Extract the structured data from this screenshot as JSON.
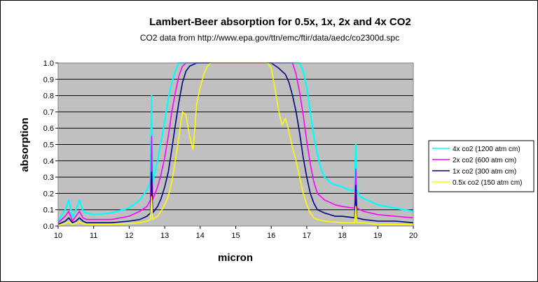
{
  "chart_data": {
    "type": "line",
    "title": "Lambert-Beer absorption for 0.5x, 1x, 2x and 4x CO2",
    "subtitle": "CO2 data from http://www.epa.gov/ttn/emc/ftir/data/aedc/co2300d.spc",
    "xlabel": "micron",
    "ylabel": "absorption",
    "xlim": [
      10,
      20
    ],
    "ylim": [
      0,
      1
    ],
    "xticks": [
      "10",
      "11",
      "12",
      "13",
      "14",
      "15",
      "16",
      "17",
      "18",
      "19",
      "20"
    ],
    "yticks": [
      "0.0",
      "0.1",
      "0.2",
      "0.3",
      "0.4",
      "0.5",
      "0.6",
      "0.7",
      "0.8",
      "0.9",
      "1.0"
    ],
    "grid": "horizontal",
    "plot_background": "#c0c0c0",
    "legend_position": "right",
    "series": [
      {
        "name": "4x co2 (1200 atm cm)",
        "color": "#00ffff",
        "points": [
          [
            10.0,
            0.03
          ],
          [
            10.2,
            0.1
          ],
          [
            10.3,
            0.16
          ],
          [
            10.4,
            0.05
          ],
          [
            10.5,
            0.1
          ],
          [
            10.6,
            0.16
          ],
          [
            10.7,
            0.09
          ],
          [
            10.8,
            0.08
          ],
          [
            11.0,
            0.07
          ],
          [
            11.5,
            0.08
          ],
          [
            12.0,
            0.11
          ],
          [
            12.3,
            0.16
          ],
          [
            12.5,
            0.22
          ],
          [
            12.6,
            0.27
          ],
          [
            12.63,
            0.8
          ],
          [
            12.66,
            0.27
          ],
          [
            12.8,
            0.4
          ],
          [
            12.9,
            0.52
          ],
          [
            13.0,
            0.64
          ],
          [
            13.1,
            0.78
          ],
          [
            13.2,
            0.88
          ],
          [
            13.3,
            0.95
          ],
          [
            13.4,
            1.0
          ],
          [
            14.0,
            1.0
          ],
          [
            16.0,
            1.0
          ],
          [
            16.8,
            1.0
          ],
          [
            16.9,
            0.95
          ],
          [
            17.0,
            0.85
          ],
          [
            17.1,
            0.7
          ],
          [
            17.2,
            0.55
          ],
          [
            17.3,
            0.44
          ],
          [
            17.4,
            0.35
          ],
          [
            17.5,
            0.3
          ],
          [
            17.7,
            0.26
          ],
          [
            18.0,
            0.24
          ],
          [
            18.2,
            0.22
          ],
          [
            18.35,
            0.22
          ],
          [
            18.38,
            0.5
          ],
          [
            18.41,
            0.22
          ],
          [
            18.5,
            0.18
          ],
          [
            19.0,
            0.13
          ],
          [
            19.5,
            0.11
          ],
          [
            20.0,
            0.09
          ]
        ]
      },
      {
        "name": "2x co2 (600 atm cm)",
        "color": "#ff00ff",
        "points": [
          [
            10.0,
            0.02
          ],
          [
            10.2,
            0.06
          ],
          [
            10.3,
            0.09
          ],
          [
            10.4,
            0.03
          ],
          [
            10.5,
            0.06
          ],
          [
            10.6,
            0.09
          ],
          [
            10.7,
            0.05
          ],
          [
            10.8,
            0.04
          ],
          [
            11.0,
            0.04
          ],
          [
            11.5,
            0.04
          ],
          [
            12.0,
            0.06
          ],
          [
            12.3,
            0.09
          ],
          [
            12.5,
            0.12
          ],
          [
            12.6,
            0.16
          ],
          [
            12.63,
            0.55
          ],
          [
            12.66,
            0.16
          ],
          [
            12.8,
            0.24
          ],
          [
            12.9,
            0.32
          ],
          [
            13.0,
            0.42
          ],
          [
            13.1,
            0.55
          ],
          [
            13.2,
            0.7
          ],
          [
            13.3,
            0.82
          ],
          [
            13.4,
            0.92
          ],
          [
            13.5,
            0.98
          ],
          [
            13.6,
            1.0
          ],
          [
            14.0,
            1.0
          ],
          [
            16.0,
            1.0
          ],
          [
            16.6,
            1.0
          ],
          [
            16.7,
            0.93
          ],
          [
            16.8,
            0.82
          ],
          [
            16.9,
            0.68
          ],
          [
            17.0,
            0.52
          ],
          [
            17.1,
            0.38
          ],
          [
            17.2,
            0.27
          ],
          [
            17.3,
            0.2
          ],
          [
            17.5,
            0.16
          ],
          [
            17.8,
            0.13
          ],
          [
            18.0,
            0.12
          ],
          [
            18.35,
            0.11
          ],
          [
            18.38,
            0.35
          ],
          [
            18.41,
            0.11
          ],
          [
            18.6,
            0.09
          ],
          [
            19.0,
            0.07
          ],
          [
            19.5,
            0.06
          ],
          [
            20.0,
            0.05
          ]
        ]
      },
      {
        "name": "1x co2 (300 atm cm)",
        "color": "#000080",
        "points": [
          [
            10.0,
            0.01
          ],
          [
            10.2,
            0.03
          ],
          [
            10.3,
            0.05
          ],
          [
            10.4,
            0.02
          ],
          [
            10.5,
            0.03
          ],
          [
            10.6,
            0.05
          ],
          [
            10.7,
            0.03
          ],
          [
            10.8,
            0.02
          ],
          [
            11.0,
            0.02
          ],
          [
            11.5,
            0.02
          ],
          [
            12.0,
            0.03
          ],
          [
            12.3,
            0.04
          ],
          [
            12.5,
            0.06
          ],
          [
            12.6,
            0.08
          ],
          [
            12.63,
            0.33
          ],
          [
            12.66,
            0.08
          ],
          [
            12.8,
            0.12
          ],
          [
            12.9,
            0.17
          ],
          [
            13.0,
            0.24
          ],
          [
            13.1,
            0.33
          ],
          [
            13.2,
            0.47
          ],
          [
            13.3,
            0.62
          ],
          [
            13.4,
            0.76
          ],
          [
            13.5,
            0.88
          ],
          [
            13.6,
            0.95
          ],
          [
            13.7,
            0.98
          ],
          [
            13.8,
            0.99
          ],
          [
            13.9,
            1.0
          ],
          [
            14.0,
            1.0
          ],
          [
            16.0,
            1.0
          ],
          [
            16.2,
            0.97
          ],
          [
            16.4,
            0.93
          ],
          [
            16.5,
            0.88
          ],
          [
            16.6,
            0.8
          ],
          [
            16.7,
            0.7
          ],
          [
            16.8,
            0.57
          ],
          [
            16.9,
            0.42
          ],
          [
            17.0,
            0.3
          ],
          [
            17.1,
            0.2
          ],
          [
            17.2,
            0.14
          ],
          [
            17.3,
            0.1
          ],
          [
            17.5,
            0.08
          ],
          [
            17.8,
            0.06
          ],
          [
            18.0,
            0.06
          ],
          [
            18.35,
            0.05
          ],
          [
            18.38,
            0.25
          ],
          [
            18.41,
            0.05
          ],
          [
            18.6,
            0.04
          ],
          [
            19.0,
            0.03
          ],
          [
            19.5,
            0.03
          ],
          [
            20.0,
            0.02
          ]
        ]
      },
      {
        "name": "0.5x co2 (150 atm cm)",
        "color": "#ffff00",
        "points": [
          [
            10.0,
            0.005
          ],
          [
            10.2,
            0.015
          ],
          [
            10.3,
            0.025
          ],
          [
            10.4,
            0.01
          ],
          [
            10.5,
            0.015
          ],
          [
            10.6,
            0.025
          ],
          [
            10.7,
            0.015
          ],
          [
            10.8,
            0.01
          ],
          [
            11.0,
            0.01
          ],
          [
            11.5,
            0.01
          ],
          [
            12.0,
            0.015
          ],
          [
            12.3,
            0.02
          ],
          [
            12.5,
            0.03
          ],
          [
            12.6,
            0.04
          ],
          [
            12.63,
            0.18
          ],
          [
            12.66,
            0.04
          ],
          [
            12.8,
            0.06
          ],
          [
            12.9,
            0.09
          ],
          [
            13.0,
            0.13
          ],
          [
            13.1,
            0.18
          ],
          [
            13.2,
            0.27
          ],
          [
            13.3,
            0.4
          ],
          [
            13.4,
            0.55
          ],
          [
            13.5,
            0.7
          ],
          [
            13.6,
            0.68
          ],
          [
            13.7,
            0.55
          ],
          [
            13.8,
            0.47
          ],
          [
            13.85,
            0.6
          ],
          [
            13.9,
            0.75
          ],
          [
            14.0,
            0.85
          ],
          [
            14.1,
            0.93
          ],
          [
            14.2,
            0.98
          ],
          [
            14.3,
            1.0
          ],
          [
            15.9,
            1.0
          ],
          [
            16.0,
            0.97
          ],
          [
            16.1,
            0.85
          ],
          [
            16.2,
            0.72
          ],
          [
            16.3,
            0.62
          ],
          [
            16.4,
            0.66
          ],
          [
            16.5,
            0.58
          ],
          [
            16.6,
            0.48
          ],
          [
            16.7,
            0.4
          ],
          [
            16.8,
            0.3
          ],
          [
            16.9,
            0.2
          ],
          [
            17.0,
            0.13
          ],
          [
            17.1,
            0.08
          ],
          [
            17.2,
            0.05
          ],
          [
            17.3,
            0.04
          ],
          [
            17.5,
            0.03
          ],
          [
            18.0,
            0.02
          ],
          [
            18.35,
            0.02
          ],
          [
            18.38,
            0.12
          ],
          [
            18.41,
            0.02
          ],
          [
            18.6,
            0.02
          ],
          [
            19.0,
            0.01
          ],
          [
            20.0,
            0.01
          ]
        ]
      }
    ]
  }
}
